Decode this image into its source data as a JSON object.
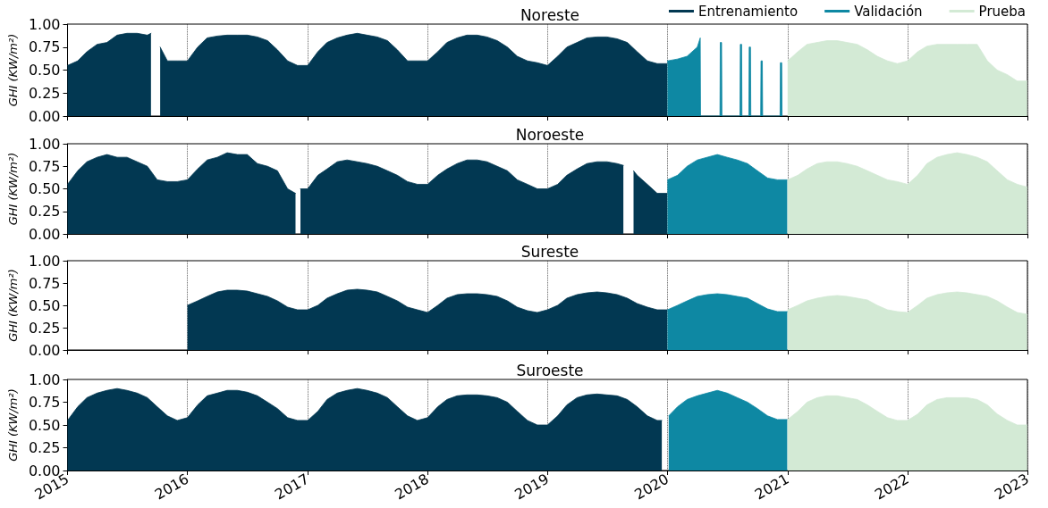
{
  "chart_data": [
    {
      "type": "area",
      "title": "Noreste",
      "ylabel": "GHI (KW/m²)",
      "xlim": [
        "2015",
        "2023"
      ],
      "xticks": [
        "2015",
        "2016",
        "2017",
        "2018",
        "2019",
        "2020",
        "2021",
        "2022",
        "2023"
      ],
      "ylim": [
        0,
        1
      ],
      "yticks": [
        {
          "value": 0,
          "label": "0.00"
        },
        {
          "value": 0.25,
          "label": "0.25"
        },
        {
          "value": 0.5,
          "label": "0.50"
        },
        {
          "value": 0.75,
          "label": "0.75"
        },
        {
          "value": 1,
          "label": "1.00"
        }
      ],
      "grid": "x",
      "legend": "top right",
      "tick_labels": "y",
      "series": [
        {
          "name": "Entrenamiento",
          "color": "#023852",
          "x": [
            "2015-01",
            "2015-02",
            "2015-03",
            "2015-04",
            "2015-05",
            "2015-06",
            "2015-07",
            "2015-08",
            "2015-09",
            "2015-09-12",
            "2015-09-25",
            "2015-10-10",
            "2015-11",
            "2015-12",
            "2016-01",
            "2016-02",
            "2016-03",
            "2016-04",
            "2016-05",
            "2016-06",
            "2016-07",
            "2016-08",
            "2016-09",
            "2016-10",
            "2016-11",
            "2016-12",
            "2017-01",
            "2017-02",
            "2017-03",
            "2017-04",
            "2017-05",
            "2017-06",
            "2017-07",
            "2017-08",
            "2017-09",
            "2017-10",
            "2017-11",
            "2017-12",
            "2018-01",
            "2018-02",
            "2018-03",
            "2018-04",
            "2018-05",
            "2018-06",
            "2018-07",
            "2018-08",
            "2018-09",
            "2018-10",
            "2018-11",
            "2018-12",
            "2019-01",
            "2019-02",
            "2019-03",
            "2019-04",
            "2019-05",
            "2019-06",
            "2019-07",
            "2019-08",
            "2019-09",
            "2019-10",
            "2019-11",
            "2019-12",
            "2019-12-31"
          ],
          "values": [
            0.55,
            0.6,
            0.7,
            0.78,
            0.8,
            0.88,
            0.9,
            0.9,
            0.88,
            0.9,
            null,
            0.75,
            0.6,
            0.6,
            0.6,
            0.75,
            0.85,
            0.87,
            0.88,
            0.88,
            0.88,
            0.86,
            0.82,
            0.72,
            0.6,
            0.55,
            0.55,
            0.7,
            0.8,
            0.85,
            0.88,
            0.9,
            0.88,
            0.86,
            0.82,
            0.72,
            0.6,
            0.6,
            0.6,
            0.7,
            0.8,
            0.85,
            0.88,
            0.88,
            0.86,
            0.82,
            0.75,
            0.65,
            0.6,
            0.58,
            0.55,
            0.65,
            0.75,
            0.8,
            0.85,
            0.86,
            0.86,
            0.84,
            0.8,
            0.7,
            0.6,
            0.57,
            0.57
          ]
        },
        {
          "name": "Validación",
          "color": "#0e88a3",
          "x": [
            "2020-01",
            "2020-02",
            "2020-03",
            "2020-04",
            "2020-04-10",
            "2020-04-11",
            "2020-06-09",
            "2020-06-10",
            "2020-06-14",
            "2020-06-15",
            "2020-08-09",
            "2020-08-10",
            "2020-08-14",
            "2020-08-15",
            "2020-09-05",
            "2020-09-06",
            "2020-09-10",
            "2020-09-11",
            "2020-10-11",
            "2020-10-12",
            "2020-10-16",
            "2020-10-17",
            "2020-12-09",
            "2020-12-10",
            "2020-12-14",
            "2020-12-15"
          ],
          "values": [
            0.6,
            0.62,
            0.65,
            0.75,
            0.85,
            0,
            0,
            0.8,
            0.8,
            0,
            0,
            0.78,
            0.78,
            0,
            0,
            0.75,
            0.75,
            0,
            0,
            0.6,
            0.6,
            0,
            0,
            0.58,
            0.58,
            0
          ]
        },
        {
          "name": "Prueba",
          "color": "#d3ead5",
          "x": [
            "2021-01",
            "2021-02",
            "2021-03",
            "2021-04",
            "2021-05",
            "2021-06",
            "2021-07",
            "2021-08",
            "2021-09",
            "2021-10",
            "2021-11",
            "2021-12",
            "2022-01",
            "2022-02",
            "2022-03",
            "2022-04",
            "2022-05",
            "2022-06",
            "2022-07",
            "2022-08",
            "2022-09",
            "2022-10",
            "2022-11",
            "2022-12",
            "2022-12-31"
          ],
          "values": [
            0.6,
            0.7,
            0.78,
            0.8,
            0.82,
            0.82,
            0.8,
            0.78,
            0.72,
            0.65,
            0.6,
            0.57,
            0.6,
            0.7,
            0.76,
            0.78,
            0.78,
            0.78,
            0.78,
            0.78,
            0.6,
            0.5,
            0.45,
            0.38,
            0.38
          ]
        }
      ]
    },
    {
      "type": "area",
      "title": "Noroeste",
      "ylabel": "GHI (KW/m²)",
      "xlim": [
        "2015",
        "2023"
      ],
      "xticks": [
        "2015",
        "2016",
        "2017",
        "2018",
        "2019",
        "2020",
        "2021",
        "2022",
        "2023"
      ],
      "ylim": [
        0,
        1
      ],
      "yticks": [
        {
          "value": 0,
          "label": "0.00"
        },
        {
          "value": 0.25,
          "label": "0.25"
        },
        {
          "value": 0.5,
          "label": "0.50"
        },
        {
          "value": 0.75,
          "label": "0.75"
        },
        {
          "value": 1,
          "label": "1.00"
        }
      ],
      "grid": "x",
      "tick_labels": "y",
      "series": [
        {
          "color": "#023852",
          "x": [
            "2015-01",
            "2015-02",
            "2015-03",
            "2015-04",
            "2015-05",
            "2015-06",
            "2015-07",
            "2015-08",
            "2015-09",
            "2015-10",
            "2015-11",
            "2015-12",
            "2016-01",
            "2016-02",
            "2016-03",
            "2016-04",
            "2016-05",
            "2016-06",
            "2016-07",
            "2016-08",
            "2016-09",
            "2016-10",
            "2016-11",
            "2016-11-25",
            "2016-12-01",
            "2016-12-10",
            "2017-01",
            "2017-02",
            "2017-03",
            "2017-04",
            "2017-05",
            "2017-06",
            "2017-07",
            "2017-08",
            "2017-09",
            "2017-10",
            "2017-11",
            "2017-12",
            "2018-01",
            "2018-02",
            "2018-03",
            "2018-04",
            "2018-05",
            "2018-06",
            "2018-07",
            "2018-08",
            "2018-09",
            "2018-10",
            "2018-11",
            "2018-12",
            "2019-01",
            "2019-02",
            "2019-03",
            "2019-04",
            "2019-05",
            "2019-06",
            "2019-07",
            "2019-08",
            "2019-08-20",
            "2019-09-01",
            "2019-09-20",
            "2019-10",
            "2019-11",
            "2019-12",
            "2019-12-31"
          ],
          "values": [
            0.55,
            0.7,
            0.8,
            0.85,
            0.88,
            0.85,
            0.85,
            0.8,
            0.75,
            0.6,
            0.58,
            0.58,
            0.6,
            0.72,
            0.82,
            0.85,
            0.9,
            0.88,
            0.88,
            0.78,
            0.75,
            0.7,
            0.5,
            0.45,
            null,
            0.5,
            0.5,
            0.65,
            0.72,
            0.8,
            0.82,
            0.8,
            0.78,
            0.75,
            0.7,
            0.65,
            0.58,
            0.55,
            0.55,
            0.65,
            0.72,
            0.78,
            0.82,
            0.82,
            0.8,
            0.75,
            0.7,
            0.6,
            0.55,
            0.5,
            0.5,
            0.55,
            0.65,
            0.72,
            0.78,
            0.8,
            0.8,
            0.78,
            0.76,
            null,
            0.7,
            0.65,
            0.55,
            0.45,
            0.45
          ]
        },
        {
          "color": "#0e88a3",
          "x": [
            "2020-01",
            "2020-02",
            "2020-03",
            "2020-04",
            "2020-05",
            "2020-06",
            "2020-07",
            "2020-08",
            "2020-09",
            "2020-10",
            "2020-11",
            "2020-12",
            "2020-12-31"
          ],
          "values": [
            0.6,
            0.65,
            0.75,
            0.82,
            0.85,
            0.88,
            0.85,
            0.82,
            0.78,
            0.7,
            0.62,
            0.6,
            0.6
          ]
        },
        {
          "color": "#d3ead5",
          "x": [
            "2021-01",
            "2021-02",
            "2021-03",
            "2021-04",
            "2021-05",
            "2021-06",
            "2021-07",
            "2021-08",
            "2021-09",
            "2021-10",
            "2021-11",
            "2021-12",
            "2022-01",
            "2022-02",
            "2022-03",
            "2022-04",
            "2022-05",
            "2022-06",
            "2022-07",
            "2022-08",
            "2022-09",
            "2022-10",
            "2022-11",
            "2022-12",
            "2022-12-31"
          ],
          "values": [
            0.6,
            0.65,
            0.72,
            0.78,
            0.8,
            0.8,
            0.78,
            0.75,
            0.7,
            0.65,
            0.6,
            0.58,
            0.55,
            0.65,
            0.78,
            0.85,
            0.88,
            0.9,
            0.88,
            0.85,
            0.8,
            0.7,
            0.6,
            0.55,
            0.52
          ]
        }
      ]
    },
    {
      "type": "area",
      "title": "Sureste",
      "ylabel": "GHI (KW/m²)",
      "xlim": [
        "2015",
        "2023"
      ],
      "xticks": [
        "2015",
        "2016",
        "2017",
        "2018",
        "2019",
        "2020",
        "2021",
        "2022",
        "2023"
      ],
      "ylim": [
        0,
        1
      ],
      "yticks": [
        {
          "value": 0,
          "label": "0.00"
        },
        {
          "value": 0.25,
          "label": "0.25"
        },
        {
          "value": 0.5,
          "label": "0.50"
        },
        {
          "value": 0.75,
          "label": "0.75"
        },
        {
          "value": 1,
          "label": "1.00"
        }
      ],
      "grid": "x",
      "tick_labels": "y",
      "series": [
        {
          "color": "#023852",
          "x": [
            "2016-01",
            "2016-02",
            "2016-03",
            "2016-04",
            "2016-05",
            "2016-06",
            "2016-07",
            "2016-08",
            "2016-09",
            "2016-10",
            "2016-11",
            "2016-12",
            "2017-01",
            "2017-02",
            "2017-03",
            "2017-04",
            "2017-05",
            "2017-06",
            "2017-07",
            "2017-08",
            "2017-09",
            "2017-10",
            "2017-11",
            "2017-12",
            "2018-01",
            "2018-02",
            "2018-03",
            "2018-04",
            "2018-05",
            "2018-06",
            "2018-07",
            "2018-08",
            "2018-09",
            "2018-10",
            "2018-11",
            "2018-12",
            "2019-01",
            "2019-02",
            "2019-03",
            "2019-04",
            "2019-05",
            "2019-06",
            "2019-07",
            "2019-08",
            "2019-09",
            "2019-10",
            "2019-11",
            "2019-12",
            "2019-12-31"
          ],
          "values": [
            0.5,
            0.55,
            0.6,
            0.65,
            0.67,
            0.67,
            0.66,
            0.63,
            0.6,
            0.55,
            0.48,
            0.45,
            0.45,
            0.5,
            0.58,
            0.63,
            0.67,
            0.68,
            0.67,
            0.65,
            0.6,
            0.55,
            0.48,
            0.45,
            0.42,
            0.5,
            0.58,
            0.62,
            0.63,
            0.63,
            0.62,
            0.6,
            0.55,
            0.48,
            0.44,
            0.42,
            0.45,
            0.5,
            0.58,
            0.62,
            0.64,
            0.65,
            0.64,
            0.62,
            0.58,
            0.52,
            0.48,
            0.45,
            0.45
          ]
        },
        {
          "color": "#0e88a3",
          "x": [
            "2020-01",
            "2020-02",
            "2020-03",
            "2020-04",
            "2020-05",
            "2020-06",
            "2020-07",
            "2020-08",
            "2020-09",
            "2020-10",
            "2020-11",
            "2020-12",
            "2020-12-31"
          ],
          "values": [
            0.45,
            0.5,
            0.55,
            0.6,
            0.62,
            0.63,
            0.62,
            0.6,
            0.58,
            0.52,
            0.46,
            0.43,
            0.43
          ]
        },
        {
          "color": "#d3ead5",
          "x": [
            "2021-01",
            "2021-02",
            "2021-03",
            "2021-04",
            "2021-05",
            "2021-06",
            "2021-07",
            "2021-08",
            "2021-09",
            "2021-10",
            "2021-11",
            "2021-12",
            "2022-01",
            "2022-02",
            "2022-03",
            "2022-04",
            "2022-05",
            "2022-06",
            "2022-07",
            "2022-08",
            "2022-09",
            "2022-10",
            "2022-11",
            "2022-12",
            "2022-12-31"
          ],
          "values": [
            0.45,
            0.5,
            0.55,
            0.58,
            0.6,
            0.61,
            0.6,
            0.58,
            0.56,
            0.5,
            0.45,
            0.43,
            0.42,
            0.5,
            0.58,
            0.62,
            0.64,
            0.65,
            0.64,
            0.62,
            0.6,
            0.55,
            0.48,
            0.42,
            0.4
          ]
        }
      ]
    },
    {
      "type": "area",
      "title": "Suroeste",
      "ylabel": "GHI (KW/m²)",
      "xlim": [
        "2015",
        "2023"
      ],
      "xticks": [
        "2015",
        "2016",
        "2017",
        "2018",
        "2019",
        "2020",
        "2021",
        "2022",
        "2023"
      ],
      "ylim": [
        0,
        1
      ],
      "yticks": [
        {
          "value": 0,
          "label": "0.00"
        },
        {
          "value": 0.25,
          "label": "0.25"
        },
        {
          "value": 0.5,
          "label": "0.50"
        },
        {
          "value": 0.75,
          "label": "0.75"
        },
        {
          "value": 1,
          "label": "1.00"
        }
      ],
      "grid": "x",
      "series": [
        {
          "color": "#023852",
          "x": [
            "2015-01",
            "2015-02",
            "2015-03",
            "2015-04",
            "2015-05",
            "2015-06",
            "2015-07",
            "2015-08",
            "2015-09",
            "2015-10",
            "2015-11",
            "2015-12",
            "2016-01",
            "2016-02",
            "2016-03",
            "2016-04",
            "2016-05",
            "2016-06",
            "2016-07",
            "2016-08",
            "2016-09",
            "2016-10",
            "2016-11",
            "2016-12",
            "2017-01",
            "2017-02",
            "2017-03",
            "2017-04",
            "2017-05",
            "2017-06",
            "2017-07",
            "2017-08",
            "2017-09",
            "2017-10",
            "2017-11",
            "2017-12",
            "2018-01",
            "2018-02",
            "2018-03",
            "2018-04",
            "2018-05",
            "2018-06",
            "2018-07",
            "2018-08",
            "2018-09",
            "2018-10",
            "2018-11",
            "2018-12",
            "2019-01",
            "2019-02",
            "2019-03",
            "2019-04",
            "2019-05",
            "2019-06",
            "2019-07",
            "2019-08",
            "2019-09",
            "2019-10",
            "2019-11",
            "2019-12",
            "2019-12-15"
          ],
          "values": [
            0.55,
            0.7,
            0.8,
            0.85,
            0.88,
            0.9,
            0.88,
            0.85,
            0.8,
            0.7,
            0.6,
            0.55,
            0.58,
            0.72,
            0.82,
            0.85,
            0.88,
            0.88,
            0.86,
            0.82,
            0.75,
            0.68,
            0.58,
            0.55,
            0.55,
            0.65,
            0.78,
            0.85,
            0.88,
            0.9,
            0.88,
            0.85,
            0.8,
            0.7,
            0.6,
            0.55,
            0.58,
            0.7,
            0.78,
            0.82,
            0.83,
            0.83,
            0.82,
            0.8,
            0.75,
            0.65,
            0.55,
            0.5,
            0.5,
            0.6,
            0.72,
            0.8,
            0.83,
            0.84,
            0.83,
            0.82,
            0.78,
            0.7,
            0.6,
            0.55,
            0.55
          ]
        },
        {
          "color": "#0e88a3",
          "x": [
            "2020-01-05",
            "2020-02",
            "2020-03",
            "2020-04",
            "2020-05",
            "2020-06",
            "2020-07",
            "2020-08",
            "2020-09",
            "2020-10",
            "2020-11",
            "2020-12",
            "2020-12-31"
          ],
          "values": [
            0.6,
            0.7,
            0.78,
            0.82,
            0.85,
            0.88,
            0.85,
            0.8,
            0.75,
            0.68,
            0.6,
            0.56,
            0.56
          ]
        },
        {
          "color": "#d3ead5",
          "x": [
            "2021-01",
            "2021-02",
            "2021-03",
            "2021-04",
            "2021-05",
            "2021-06",
            "2021-07",
            "2021-08",
            "2021-09",
            "2021-10",
            "2021-11",
            "2021-12",
            "2022-01",
            "2022-02",
            "2022-03",
            "2022-04",
            "2022-05",
            "2022-06",
            "2022-07",
            "2022-08",
            "2022-09",
            "2022-10",
            "2022-11",
            "2022-12",
            "2022-12-31"
          ],
          "values": [
            0.56,
            0.65,
            0.75,
            0.8,
            0.82,
            0.82,
            0.8,
            0.78,
            0.72,
            0.65,
            0.58,
            0.55,
            0.55,
            0.62,
            0.72,
            0.78,
            0.8,
            0.8,
            0.8,
            0.78,
            0.72,
            0.62,
            0.55,
            0.5,
            0.5
          ]
        }
      ]
    }
  ]
}
